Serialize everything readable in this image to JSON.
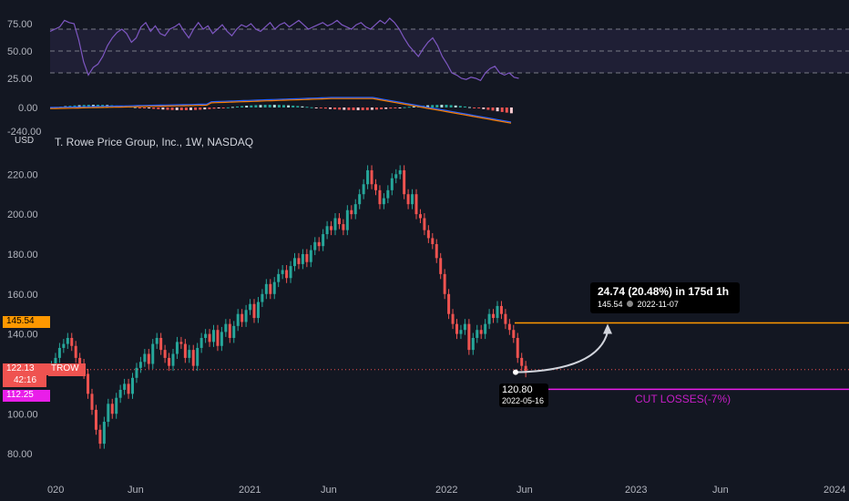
{
  "header": {
    "currency": "USD",
    "title": "T. Rowe Price Group, Inc., 1W, NASDAQ"
  },
  "rsi_panel": {
    "tick_labels": [
      "75.00",
      "50.00",
      "25.00"
    ],
    "upper_band": 70,
    "lower_band": 30,
    "mid": 50,
    "series_color": "#7e57c2",
    "values": [
      68,
      70,
      72,
      78,
      76,
      75,
      60,
      40,
      28,
      35,
      38,
      45,
      55,
      62,
      67,
      70,
      66,
      58,
      62,
      72,
      76,
      68,
      73,
      66,
      64,
      70,
      72,
      75,
      68,
      62,
      70,
      76,
      70,
      73,
      66,
      70,
      74,
      68,
      64,
      70,
      74,
      72,
      75,
      70,
      68,
      72,
      76,
      70,
      74,
      76,
      72,
      75,
      78,
      74,
      70,
      72,
      74,
      76,
      73,
      75,
      78,
      74,
      72,
      70,
      74,
      76,
      72,
      70,
      74,
      78,
      75,
      80,
      76,
      70,
      62,
      55,
      50,
      45,
      52,
      58,
      62,
      55,
      45,
      38,
      30,
      28,
      25,
      24,
      26,
      25,
      23,
      30,
      34,
      36,
      30,
      28,
      30,
      26,
      25
    ]
  },
  "macd_panel": {
    "tick_labels": [
      "0.00",
      "-240.00"
    ],
    "macd_color": "#2962ff",
    "signal_color": "#f57c00"
  },
  "price_axis": {
    "ticks": [
      "220.00",
      "200.00",
      "180.00",
      "160.00",
      "140.00",
      "100.00",
      "80.00"
    ]
  },
  "time_axis": {
    "ticks": [
      "020",
      "Jun",
      "2021",
      "Jun",
      "2022",
      "Jun",
      "2023",
      "Jun",
      "2024"
    ]
  },
  "tags": {
    "target_price": "145.54",
    "last_price": "122.13",
    "countdown": "42:16",
    "symbol": "TROW",
    "stop_price": "112.25"
  },
  "levels": {
    "target": 145.54,
    "last": 122.13,
    "stop": 112.25,
    "target_color": "#ff9800",
    "stop_color": "#e91ee9",
    "stop_label": "CUT LOSSES(-7%)"
  },
  "projection": {
    "headline": "24.74 (20.48%) in 175d 1h",
    "sub_price": "145.54",
    "sub_date": "2022-11-07",
    "start_price": "120.80",
    "start_date": "2022-05-16"
  },
  "chart_data": {
    "type": "candlestick",
    "title": "T. Rowe Price Group, Inc., 1W, NASDAQ",
    "ylim": [
      70,
      232
    ],
    "up_color": "#26a69a",
    "down_color": "#ef5350",
    "series": [
      {
        "name": "TROW",
        "closes": [
          124,
          128,
          133,
          135,
          138,
          134,
          128,
          125,
          120,
          110,
          102,
          92,
          85,
          96,
          105,
          100,
          108,
          112,
          115,
          110,
          118,
          123,
          126,
          130,
          125,
          135,
          138,
          132,
          128,
          124,
          130,
          136,
          135,
          128,
          132,
          124,
          133,
          138,
          140,
          136,
          142,
          134,
          141,
          145,
          138,
          144,
          150,
          146,
          152,
          155,
          148,
          156,
          160,
          165,
          160,
          166,
          170,
          172,
          168,
          174,
          178,
          175,
          180,
          176,
          182,
          186,
          184,
          190,
          194,
          192,
          198,
          195,
          192,
          202,
          200,
          205,
          210,
          215,
          222,
          215,
          212,
          205,
          208,
          212,
          218,
          220,
          222,
          210,
          205,
          210,
          200,
          198,
          192,
          188,
          185,
          178,
          170,
          160,
          150,
          145,
          140,
          142,
          145,
          132,
          138,
          142,
          140,
          145,
          150,
          148,
          154,
          150,
          145,
          142,
          138,
          128,
          124,
          120.8
        ]
      }
    ]
  }
}
